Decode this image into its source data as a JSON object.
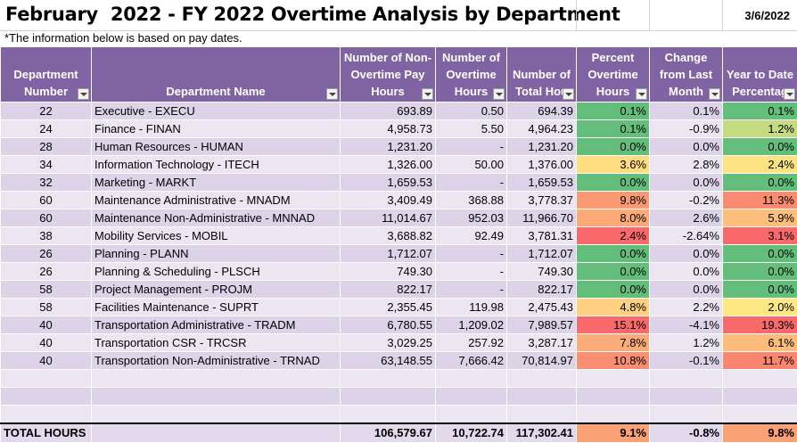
{
  "header": {
    "title": "February  2022 - FY 2022 Overtime Analysis by Department",
    "date": "3/6/2022",
    "note": "*The information below is based on pay dates."
  },
  "columns": [
    "Department Number",
    "Department Name",
    "Number of Non-Overtime Pay Hours",
    "Number of Overtime Hours",
    "Number of Total Hou",
    "Percent Overtime Hours",
    "Change from Last Month",
    "Year to Date Percentag"
  ],
  "rows": [
    {
      "num": "22",
      "name": "Executive - EXECU",
      "nonot": "693.89",
      "ot": "0.50",
      "total": "694.39",
      "pct": "0.1%",
      "chg": "0.1%",
      "ytd": "0.1%",
      "pct_color": "#63be7b",
      "ytd_color": "#63be7b"
    },
    {
      "num": "24",
      "name": "Finance - FINAN",
      "nonot": "4,958.73",
      "ot": "5.50",
      "total": "4,964.23",
      "pct": "0.1%",
      "chg": "-0.9%",
      "ytd": "1.2%",
      "pct_color": "#63be7b",
      "ytd_color": "#c6db81"
    },
    {
      "num": "28",
      "name": "Human Resources - HUMAN",
      "nonot": "1,231.20",
      "ot": "-",
      "total": "1,231.20",
      "pct": "0.0%",
      "chg": "0.0%",
      "ytd": "0.0%",
      "pct_color": "#63be7b",
      "ytd_color": "#63be7b"
    },
    {
      "num": "34",
      "name": "Information Technology - ITECH",
      "nonot": "1,326.00",
      "ot": "50.00",
      "total": "1,376.00",
      "pct": "3.6%",
      "chg": "2.8%",
      "ytd": "2.4%",
      "pct_color": "#fedd81",
      "ytd_color": "#fee382"
    },
    {
      "num": "32",
      "name": "Marketing - MARKT",
      "nonot": "1,659.53",
      "ot": "-",
      "total": "1,659.53",
      "pct": "0.0%",
      "chg": "0.0%",
      "ytd": "0.0%",
      "pct_color": "#63be7b",
      "ytd_color": "#63be7b"
    },
    {
      "num": "60",
      "name": "Maintenance Administrative - MNADM",
      "nonot": "3,409.49",
      "ot": "368.88",
      "total": "3,778.37",
      "pct": "9.8%",
      "chg": "-0.2%",
      "ytd": "11.3%",
      "pct_color": "#fa9a73",
      "ytd_color": "#f98b70"
    },
    {
      "num": "60",
      "name": "Maintenance Non-Administrative - MNNAD",
      "nonot": "11,014.67",
      "ot": "952.03",
      "total": "11,966.70",
      "pct": "8.0%",
      "chg": "2.6%",
      "ytd": "5.9%",
      "pct_color": "#fba976",
      "ytd_color": "#fcbe7b"
    },
    {
      "num": "38",
      "name": "Mobility Services - MOBIL",
      "nonot": "3,688.82",
      "ot": "92.49",
      "total": "3,781.31",
      "pct": "2.4%",
      "chg": "-2.64%",
      "ytd": "3.1%",
      "pct_color": "#f8696b",
      "ytd_color": "#f8696b"
    },
    {
      "num": "26",
      "name": "Planning - PLANN",
      "nonot": "1,712.07",
      "ot": "-",
      "total": "1,712.07",
      "pct": "0.0%",
      "chg": "0.0%",
      "ytd": "0.0%",
      "pct_color": "#63be7b",
      "ytd_color": "#63be7b"
    },
    {
      "num": "26",
      "name": "Planning & Scheduling - PLSCH",
      "nonot": "749.30",
      "ot": "-",
      "total": "749.30",
      "pct": "0.0%",
      "chg": "0.0%",
      "ytd": "0.0%",
      "pct_color": "#63be7b",
      "ytd_color": "#63be7b"
    },
    {
      "num": "58",
      "name": "Project Management - PROJM",
      "nonot": "822.17",
      "ot": "-",
      "total": "822.17",
      "pct": "0.0%",
      "chg": "0.0%",
      "ytd": "0.0%",
      "pct_color": "#63be7b",
      "ytd_color": "#63be7b"
    },
    {
      "num": "58",
      "name": "Facilities Maintenance - SUPRT",
      "nonot": "2,355.45",
      "ot": "119.98",
      "total": "2,475.43",
      "pct": "4.8%",
      "chg": "2.2%",
      "ytd": "2.0%",
      "pct_color": "#fdd17f",
      "ytd_color": "#fee883"
    },
    {
      "num": "40",
      "name": "Transportation Administrative - TRADM",
      "nonot": "6,780.55",
      "ot": "1,209.02",
      "total": "7,989.57",
      "pct": "15.1%",
      "chg": "-4.1%",
      "ytd": "19.3%",
      "pct_color": "#f8696b",
      "ytd_color": "#f8696b"
    },
    {
      "num": "40",
      "name": "Transportation CSR - TRCSR",
      "nonot": "3,029.25",
      "ot": "257.92",
      "total": "3,287.17",
      "pct": "7.8%",
      "chg": "1.2%",
      "ytd": "6.1%",
      "pct_color": "#fbab77",
      "ytd_color": "#fcbc7b"
    },
    {
      "num": "40",
      "name": "Transportation Non-Administrative - TRNAD",
      "nonot": "63,148.55",
      "ot": "7,666.42",
      "total": "70,814.97",
      "pct": "10.8%",
      "chg": "-0.1%",
      "ytd": "11.7%",
      "pct_color": "#f98f70",
      "ytd_color": "#f98770"
    }
  ],
  "totals": {
    "label": "TOTAL HOURS",
    "nonot": "106,579.67",
    "ot": "10,722.74",
    "total": "117,302.41",
    "pct": "9.1%",
    "chg": "-0.8%",
    "ytd": "9.8%",
    "pct_color": "#fba176",
    "ytd_color": "#fba176"
  }
}
